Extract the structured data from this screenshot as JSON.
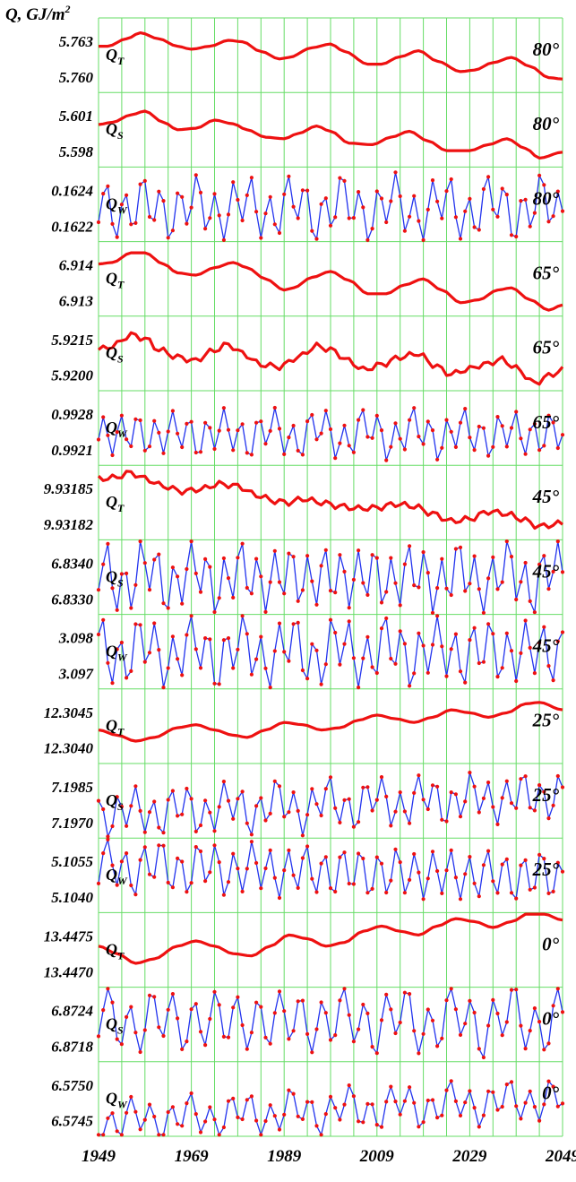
{
  "chart_data": {
    "type": "line",
    "y_axis_title": "Q, GJ/m",
    "y_axis_title_sup": "2",
    "x_ticks": [
      "1949",
      "1969",
      "1989",
      "2009",
      "2029",
      "2049"
    ],
    "xlim": [
      1949,
      2049
    ],
    "grid": true,
    "colors": {
      "grid": "#66dd66",
      "line": "#ee1111",
      "thin_line": "#2233ee"
    },
    "panels": [
      {
        "series": "Q",
        "sub": "T",
        "latitude": "80°",
        "ticks": [
          "5.763",
          "5.760"
        ],
        "style": "smooth",
        "values": [
          [
            1949,
            0.62
          ],
          [
            1951,
            0.62
          ],
          [
            1955,
            0.72
          ],
          [
            1958,
            0.8
          ],
          [
            1962,
            0.72
          ],
          [
            1966,
            0.62
          ],
          [
            1969,
            0.58
          ],
          [
            1973,
            0.62
          ],
          [
            1977,
            0.7
          ],
          [
            1980,
            0.68
          ],
          [
            1984,
            0.55
          ],
          [
            1988,
            0.45
          ],
          [
            1990,
            0.47
          ],
          [
            1995,
            0.6
          ],
          [
            1999,
            0.65
          ],
          [
            2002,
            0.55
          ],
          [
            2007,
            0.38
          ],
          [
            2010,
            0.38
          ],
          [
            2014,
            0.48
          ],
          [
            2018,
            0.56
          ],
          [
            2022,
            0.42
          ],
          [
            2027,
            0.28
          ],
          [
            2030,
            0.3
          ],
          [
            2034,
            0.4
          ],
          [
            2038,
            0.47
          ],
          [
            2042,
            0.35
          ],
          [
            2046,
            0.2
          ],
          [
            2049,
            0.18
          ]
        ]
      },
      {
        "series": "Q",
        "sub": "S",
        "latitude": "80°",
        "ticks": [
          "5.601",
          "5.598"
        ],
        "style": "smooth",
        "values": [
          [
            1949,
            0.57
          ],
          [
            1952,
            0.6
          ],
          [
            1956,
            0.7
          ],
          [
            1959,
            0.75
          ],
          [
            1963,
            0.6
          ],
          [
            1966,
            0.5
          ],
          [
            1970,
            0.52
          ],
          [
            1974,
            0.63
          ],
          [
            1978,
            0.58
          ],
          [
            1981,
            0.5
          ],
          [
            1985,
            0.4
          ],
          [
            1989,
            0.38
          ],
          [
            1992,
            0.45
          ],
          [
            1996,
            0.55
          ],
          [
            1999,
            0.48
          ],
          [
            2003,
            0.32
          ],
          [
            2008,
            0.3
          ],
          [
            2012,
            0.4
          ],
          [
            2016,
            0.48
          ],
          [
            2020,
            0.35
          ],
          [
            2024,
            0.22
          ],
          [
            2029,
            0.22
          ],
          [
            2033,
            0.3
          ],
          [
            2037,
            0.38
          ],
          [
            2041,
            0.25
          ],
          [
            2044,
            0.12
          ],
          [
            2049,
            0.2
          ]
        ]
      },
      {
        "series": "Q",
        "sub": "W",
        "latitude": "80°",
        "ticks": [
          "0.1624",
          "0.1622"
        ],
        "style": "oscillating",
        "amp": 0.32,
        "base": 0.45,
        "period": 3.9,
        "phase": 0.4
      },
      {
        "series": "Q",
        "sub": "T",
        "latitude": "65°",
        "ticks": [
          "6.914",
          "6.913"
        ],
        "style": "smooth",
        "values": [
          [
            1949,
            0.7
          ],
          [
            1952,
            0.72
          ],
          [
            1956,
            0.85
          ],
          [
            1959,
            0.85
          ],
          [
            1963,
            0.7
          ],
          [
            1966,
            0.58
          ],
          [
            1970,
            0.55
          ],
          [
            1974,
            0.65
          ],
          [
            1978,
            0.72
          ],
          [
            1981,
            0.65
          ],
          [
            1985,
            0.5
          ],
          [
            1989,
            0.35
          ],
          [
            1991,
            0.38
          ],
          [
            1995,
            0.52
          ],
          [
            1999,
            0.6
          ],
          [
            2003,
            0.48
          ],
          [
            2007,
            0.3
          ],
          [
            2011,
            0.3
          ],
          [
            2015,
            0.42
          ],
          [
            2019,
            0.5
          ],
          [
            2023,
            0.35
          ],
          [
            2027,
            0.18
          ],
          [
            2031,
            0.22
          ],
          [
            2035,
            0.35
          ],
          [
            2038,
            0.38
          ],
          [
            2042,
            0.22
          ],
          [
            2046,
            0.08
          ],
          [
            2049,
            0.15
          ]
        ]
      },
      {
        "series": "Q",
        "sub": "S",
        "latitude": "65°",
        "ticks": [
          "5.9215",
          "5.9200"
        ],
        "style": "wavy",
        "values": [
          [
            1949,
            0.55
          ],
          [
            1952,
            0.6
          ],
          [
            1956,
            0.75
          ],
          [
            1959,
            0.7
          ],
          [
            1962,
            0.55
          ],
          [
            1966,
            0.45
          ],
          [
            1970,
            0.4
          ],
          [
            1973,
            0.52
          ],
          [
            1977,
            0.62
          ],
          [
            1980,
            0.5
          ],
          [
            1984,
            0.35
          ],
          [
            1988,
            0.32
          ],
          [
            1992,
            0.45
          ],
          [
            1996,
            0.6
          ],
          [
            1999,
            0.55
          ],
          [
            2003,
            0.4
          ],
          [
            2006,
            0.28
          ],
          [
            2010,
            0.35
          ],
          [
            2014,
            0.45
          ],
          [
            2018,
            0.5
          ],
          [
            2021,
            0.35
          ],
          [
            2025,
            0.22
          ],
          [
            2028,
            0.28
          ],
          [
            2032,
            0.35
          ],
          [
            2036,
            0.42
          ],
          [
            2039,
            0.3
          ],
          [
            2043,
            0.1
          ],
          [
            2046,
            0.2
          ],
          [
            2049,
            0.28
          ]
        ]
      },
      {
        "series": "Q",
        "sub": "W",
        "latitude": "65°",
        "ticks": [
          "0.9928",
          "0.9921"
        ],
        "style": "oscillating",
        "amp": 0.25,
        "base": 0.42,
        "period": 3.7,
        "phase": 1.2
      },
      {
        "series": "Q",
        "sub": "T",
        "latitude": "45°",
        "ticks": [
          "9.93185",
          "9.93182"
        ],
        "style": "wavy",
        "values": [
          [
            1949,
            0.82
          ],
          [
            1952,
            0.83
          ],
          [
            1956,
            0.9
          ],
          [
            1959,
            0.82
          ],
          [
            1963,
            0.72
          ],
          [
            1967,
            0.65
          ],
          [
            1971,
            0.68
          ],
          [
            1975,
            0.75
          ],
          [
            1979,
            0.72
          ],
          [
            1983,
            0.6
          ],
          [
            1987,
            0.52
          ],
          [
            1990,
            0.5
          ],
          [
            1993,
            0.55
          ],
          [
            1997,
            0.5
          ],
          [
            2001,
            0.45
          ],
          [
            2005,
            0.42
          ],
          [
            2009,
            0.43
          ],
          [
            2013,
            0.48
          ],
          [
            2017,
            0.45
          ],
          [
            2021,
            0.35
          ],
          [
            2025,
            0.25
          ],
          [
            2029,
            0.28
          ],
          [
            2033,
            0.38
          ],
          [
            2037,
            0.35
          ],
          [
            2040,
            0.28
          ],
          [
            2044,
            0.18
          ],
          [
            2049,
            0.22
          ]
        ]
      },
      {
        "series": "Q",
        "sub": "S",
        "latitude": "45°",
        "ticks": [
          "6.8340",
          "6.8330"
        ],
        "style": "oscillating",
        "amp": 0.36,
        "base": 0.5,
        "period": 3.6,
        "phase": 2.1
      },
      {
        "series": "Q",
        "sub": "W",
        "latitude": "45°",
        "ticks": [
          "3.098",
          "3.097"
        ],
        "style": "oscillating",
        "amp": 0.36,
        "base": 0.5,
        "period": 3.8,
        "phase": 0.9
      },
      {
        "series": "Q",
        "sub": "T",
        "latitude": "25°",
        "ticks": [
          "12.3045",
          "12.3040"
        ],
        "style": "smooth",
        "values": [
          [
            1949,
            0.45
          ],
          [
            1953,
            0.38
          ],
          [
            1957,
            0.3
          ],
          [
            1961,
            0.35
          ],
          [
            1966,
            0.48
          ],
          [
            1970,
            0.52
          ],
          [
            1974,
            0.45
          ],
          [
            1978,
            0.38
          ],
          [
            1981,
            0.35
          ],
          [
            1985,
            0.45
          ],
          [
            1989,
            0.55
          ],
          [
            1993,
            0.52
          ],
          [
            1997,
            0.45
          ],
          [
            2001,
            0.48
          ],
          [
            2005,
            0.58
          ],
          [
            2009,
            0.65
          ],
          [
            2013,
            0.6
          ],
          [
            2017,
            0.55
          ],
          [
            2021,
            0.62
          ],
          [
            2025,
            0.72
          ],
          [
            2029,
            0.68
          ],
          [
            2033,
            0.62
          ],
          [
            2037,
            0.68
          ],
          [
            2041,
            0.8
          ],
          [
            2044,
            0.82
          ],
          [
            2049,
            0.72
          ]
        ]
      },
      {
        "series": "Q",
        "sub": "S",
        "latitude": "25°",
        "ticks": [
          "7.1985",
          "7.1970"
        ],
        "style": "oscillating",
        "amp": 0.26,
        "base": 0.45,
        "period": 3.8,
        "phase": 1.6,
        "trend": 0.25
      },
      {
        "series": "Q",
        "sub": "W",
        "latitude": "25°",
        "ticks": [
          "5.1055",
          "5.1040"
        ],
        "style": "oscillating",
        "amp": 0.3,
        "base": 0.55,
        "period": 3.9,
        "phase": 0.2,
        "trend": -0.15
      },
      {
        "series": "Q",
        "sub": "T",
        "latitude": "0°",
        "ticks": [
          "13.4475",
          "13.4470"
        ],
        "style": "smooth",
        "values": [
          [
            1949,
            0.55
          ],
          [
            1953,
            0.45
          ],
          [
            1957,
            0.32
          ],
          [
            1961,
            0.38
          ],
          [
            1966,
            0.55
          ],
          [
            1970,
            0.62
          ],
          [
            1974,
            0.55
          ],
          [
            1978,
            0.45
          ],
          [
            1982,
            0.42
          ],
          [
            1986,
            0.55
          ],
          [
            1990,
            0.7
          ],
          [
            1994,
            0.65
          ],
          [
            1998,
            0.55
          ],
          [
            2002,
            0.6
          ],
          [
            2006,
            0.75
          ],
          [
            2010,
            0.82
          ],
          [
            2014,
            0.75
          ],
          [
            2018,
            0.7
          ],
          [
            2022,
            0.82
          ],
          [
            2026,
            0.92
          ],
          [
            2030,
            0.88
          ],
          [
            2034,
            0.8
          ],
          [
            2038,
            0.88
          ],
          [
            2042,
            1.0
          ],
          [
            2045,
            0.98
          ],
          [
            2049,
            0.9
          ]
        ]
      },
      {
        "series": "Q",
        "sub": "S",
        "latitude": "0°",
        "ticks": [
          "6.8724",
          "6.8718"
        ],
        "style": "oscillating",
        "amp": 0.34,
        "base": 0.55,
        "period": 4.6,
        "phase": 0.5
      },
      {
        "series": "Q",
        "sub": "W",
        "latitude": "0°",
        "ticks": [
          "6.5750",
          "6.5745"
        ],
        "style": "oscillating",
        "amp": 0.22,
        "base": 0.35,
        "period": 4.3,
        "phase": 2.4,
        "trend": 0.3
      }
    ]
  }
}
